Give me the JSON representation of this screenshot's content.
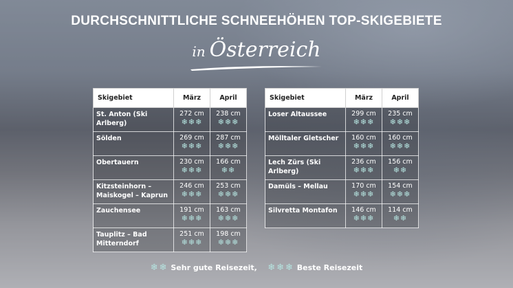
{
  "title": "DURCHSCHNITTLICHE SCHNEEHÖHEN TOP-SKIGEBIETE",
  "subtitle_prefix": "in",
  "subtitle_main": "Österreich",
  "headers": {
    "area": "Skigebiet",
    "march": "März",
    "april": "April"
  },
  "table_left": [
    {
      "name": "St. Anton (Ski Arlberg)",
      "march": "272 cm",
      "march_flakes": "❄❄❄",
      "april": "238 cm",
      "april_flakes": "❄❄❄"
    },
    {
      "name": "Sölden",
      "march": "269 cm",
      "march_flakes": "❄❄❄",
      "april": "287 cm",
      "april_flakes": "❄❄❄"
    },
    {
      "name": "Obertauern",
      "march": "230 cm",
      "march_flakes": "❄❄❄",
      "april": "166 cm",
      "april_flakes": "❄❄"
    },
    {
      "name": "Kitzsteinhorn – Maiskogel – Kaprun",
      "march": "246 cm",
      "march_flakes": "❄❄❄",
      "april": "253 cm",
      "april_flakes": "❄❄❄"
    },
    {
      "name": "Zauchensee",
      "march": "191 cm",
      "march_flakes": "❄❄❄",
      "april": "163 cm",
      "april_flakes": "❄❄❄"
    },
    {
      "name": "Tauplitz – Bad Mitterndorf",
      "march": "251 cm",
      "march_flakes": "❄❄❄",
      "april": "198 cm",
      "april_flakes": "❄❄❄"
    }
  ],
  "table_right": [
    {
      "name": "Loser Altaussee",
      "march": "299 cm",
      "march_flakes": "❄❄❄",
      "april": "235 cm",
      "april_flakes": "❄❄❄"
    },
    {
      "name": "Mölltaler Gletscher",
      "march": "160 cm",
      "march_flakes": "❄❄❄",
      "april": "160 cm",
      "april_flakes": "❄❄❄"
    },
    {
      "name": "Lech Zürs (Ski Arlberg)",
      "march": "236 cm",
      "march_flakes": "❄❄❄",
      "april": "156 cm",
      "april_flakes": "❄❄"
    },
    {
      "name": "Damüls – Mellau",
      "march": "170 cm",
      "march_flakes": "❄❄❄",
      "april": "154 cm",
      "april_flakes": "❄❄❄"
    },
    {
      "name": "Silvretta Montafon",
      "march": "146 cm",
      "march_flakes": "❄❄❄",
      "april": "114 cm",
      "april_flakes": "❄❄"
    }
  ],
  "legend": {
    "good_flakes": "❄❄",
    "good_label": "Sehr gute Reisezeit,",
    "best_flakes": "❄❄❄",
    "best_label": "Beste Reisezeit"
  },
  "colors": {
    "flake": "#b5e3df",
    "header_bg": "#ffffff"
  }
}
